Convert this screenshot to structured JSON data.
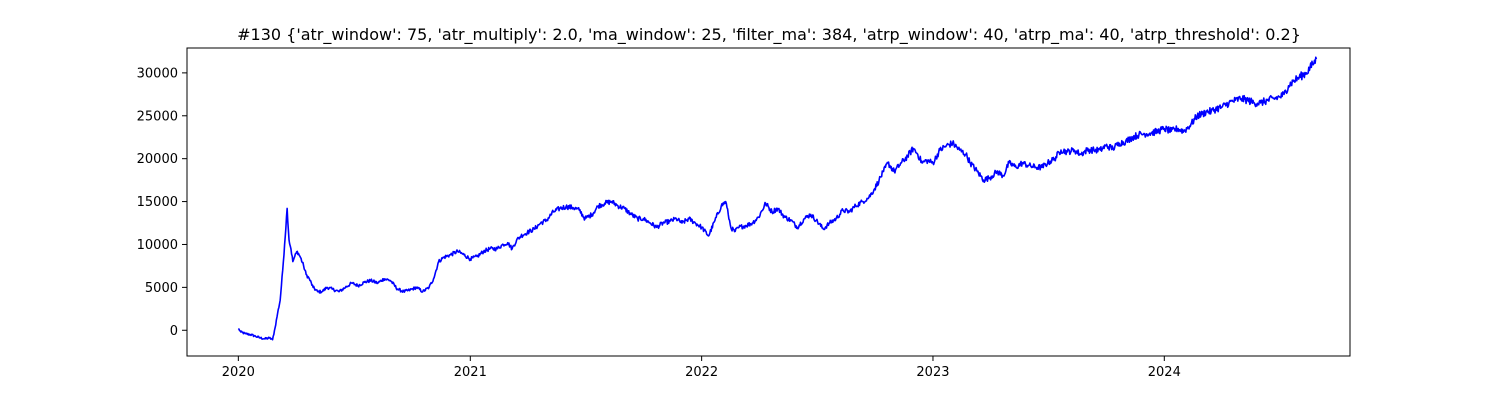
{
  "chart_data": {
    "type": "line",
    "title": "#130 {'atr_window': 75, 'atr_multiply': 2.0, 'ma_window': 25, 'filter_ma': 384, 'atrp_window': 40, 'atrp_ma': 40, 'atrp_threshold': 0.2}",
    "xlabel": "",
    "ylabel": "",
    "x_ticks": [
      "2020",
      "2021",
      "2022",
      "2023",
      "2024"
    ],
    "y_ticks": [
      0,
      5000,
      10000,
      15000,
      20000,
      25000,
      30000
    ],
    "xlim": [
      "2019-10-12",
      "2024-10-20"
    ],
    "ylim": [
      -3000,
      32900
    ],
    "grid": false,
    "legend": "none",
    "series": [
      {
        "color": "#0000ff",
        "x": [
          "2020-01-01",
          "2020-01-05",
          "2020-01-12",
          "2020-01-20",
          "2020-01-28",
          "2020-02-05",
          "2020-02-12",
          "2020-02-19",
          "2020-02-24",
          "2020-02-28",
          "2020-03-03",
          "2020-03-07",
          "2020-03-11",
          "2020-03-14",
          "2020-03-18",
          "2020-03-21",
          "2020-03-24",
          "2020-03-27",
          "2020-03-30",
          "2020-04-03",
          "2020-04-08",
          "2020-04-13",
          "2020-04-17",
          "2020-04-22",
          "2020-04-28",
          "2020-05-05",
          "2020-05-12",
          "2020-05-20",
          "2020-05-28",
          "2020-06-08",
          "2020-06-18",
          "2020-06-28",
          "2020-07-08",
          "2020-07-18",
          "2020-07-28",
          "2020-08-08",
          "2020-08-18",
          "2020-08-28",
          "2020-09-08",
          "2020-09-18",
          "2020-09-28",
          "2020-10-08",
          "2020-10-18",
          "2020-10-28",
          "2020-11-04",
          "2020-11-12",
          "2020-11-20",
          "2020-12-01",
          "2020-12-12",
          "2020-12-22",
          "2021-01-01",
          "2021-01-12",
          "2021-01-22",
          "2021-02-01",
          "2021-02-12",
          "2021-02-22",
          "2021-03-01",
          "2021-03-08",
          "2021-03-15",
          "2021-03-22",
          "2021-04-01",
          "2021-04-12",
          "2021-04-22",
          "2021-05-01",
          "2021-05-12",
          "2021-05-22",
          "2021-06-01",
          "2021-06-12",
          "2021-06-22",
          "2021-07-01",
          "2021-07-12",
          "2021-07-22",
          "2021-08-01",
          "2021-08-12",
          "2021-08-22",
          "2021-09-01",
          "2021-09-12",
          "2021-09-22",
          "2021-10-01",
          "2021-10-12",
          "2021-10-22",
          "2021-11-01",
          "2021-11-12",
          "2021-11-22",
          "2021-12-01",
          "2021-12-12",
          "2021-12-22",
          "2022-01-01",
          "2022-01-12",
          "2022-01-22",
          "2022-02-01",
          "2022-02-08",
          "2022-02-12",
          "2022-02-16",
          "2022-02-22",
          "2022-03-01",
          "2022-03-12",
          "2022-03-22",
          "2022-04-01",
          "2022-04-12",
          "2022-04-22",
          "2022-05-01",
          "2022-05-12",
          "2022-05-22",
          "2022-06-01",
          "2022-06-12",
          "2022-06-22",
          "2022-07-01",
          "2022-07-12",
          "2022-07-22",
          "2022-08-01",
          "2022-08-12",
          "2022-08-22",
          "2022-09-01",
          "2022-09-12",
          "2022-09-22",
          "2022-10-01",
          "2022-10-08",
          "2022-10-15",
          "2022-10-22",
          "2022-11-01",
          "2022-11-12",
          "2022-11-22",
          "2022-12-01",
          "2022-12-08",
          "2022-12-15",
          "2022-12-22",
          "2023-01-01",
          "2023-01-12",
          "2023-01-22",
          "2023-02-01",
          "2023-02-12",
          "2023-02-22",
          "2023-03-01",
          "2023-03-12",
          "2023-03-22",
          "2023-04-01",
          "2023-04-12",
          "2023-04-22",
          "2023-05-01",
          "2023-05-12",
          "2023-05-22",
          "2023-06-01",
          "2023-06-12",
          "2023-06-22",
          "2023-07-01",
          "2023-07-12",
          "2023-07-22",
          "2023-08-01",
          "2023-08-12",
          "2023-08-22",
          "2023-09-01",
          "2023-09-12",
          "2023-09-22",
          "2023-10-01",
          "2023-10-12",
          "2023-10-22",
          "2023-11-01",
          "2023-11-12",
          "2023-11-22",
          "2023-12-01",
          "2023-12-12",
          "2023-12-22",
          "2024-01-01",
          "2024-01-12",
          "2024-01-22",
          "2024-02-01",
          "2024-02-12",
          "2024-02-22",
          "2024-03-01",
          "2024-03-08",
          "2024-03-15",
          "2024-03-22",
          "2024-04-01",
          "2024-04-12",
          "2024-04-22",
          "2024-05-01",
          "2024-05-12",
          "2024-05-22",
          "2024-06-01",
          "2024-06-12",
          "2024-06-22",
          "2024-07-01",
          "2024-07-08",
          "2024-07-15",
          "2024-07-22",
          "2024-08-01",
          "2024-08-12",
          "2024-08-22",
          "2024-08-28"
        ],
        "y": [
          200,
          -200,
          -400,
          -500,
          -700,
          -900,
          -1000,
          -900,
          -1100,
          300,
          2000,
          3500,
          7000,
          10000,
          14200,
          10500,
          9500,
          8000,
          8600,
          9200,
          8500,
          7500,
          6500,
          6000,
          5000,
          4500,
          4500,
          5000,
          4800,
          4500,
          5000,
          5500,
          5200,
          5600,
          5800,
          5500,
          6000,
          5800,
          4800,
          4500,
          4700,
          5000,
          4500,
          5000,
          6000,
          8000,
          8500,
          8800,
          9200,
          8800,
          8300,
          8600,
          9200,
          9500,
          9500,
          10000,
          10200,
          9500,
          10500,
          11000,
          11400,
          11800,
          12500,
          12800,
          13800,
          14200,
          14400,
          14300,
          14000,
          13000,
          13500,
          14500,
          14800,
          15000,
          14500,
          14200,
          13500,
          13000,
          13000,
          12500,
          12000,
          12500,
          12700,
          13000,
          12500,
          13000,
          12500,
          12000,
          11000,
          12800,
          14500,
          15000,
          13500,
          12000,
          11500,
          12000,
          12200,
          12500,
          13200,
          14800,
          13800,
          14200,
          13200,
          12800,
          12000,
          13000,
          13500,
          12800,
          11800,
          12500,
          13000,
          14000,
          13800,
          14500,
          15000,
          15500,
          16500,
          17500,
          18500,
          19500,
          18500,
          19500,
          20300,
          21200,
          20500,
          19500,
          19800,
          19500,
          21000,
          21500,
          21800,
          21000,
          20500,
          19500,
          18500,
          17500,
          17800,
          18500,
          18000,
          19500,
          19000,
          19500,
          19200,
          19000,
          19000,
          19500,
          20000,
          21000,
          20800,
          21000,
          20500,
          21000,
          21000,
          21000,
          21500,
          21200,
          21800,
          22000,
          22500,
          22800,
          22900,
          23000,
          23200,
          23500,
          23200,
          23500,
          23200,
          24000,
          25000,
          25200,
          25500,
          25500,
          25800,
          26000,
          26500,
          26800,
          27000,
          26800,
          26500,
          26500,
          26800,
          27000,
          27200,
          27500,
          28500,
          29000,
          29500,
          30000,
          31000,
          31600
        ]
      }
    ]
  }
}
